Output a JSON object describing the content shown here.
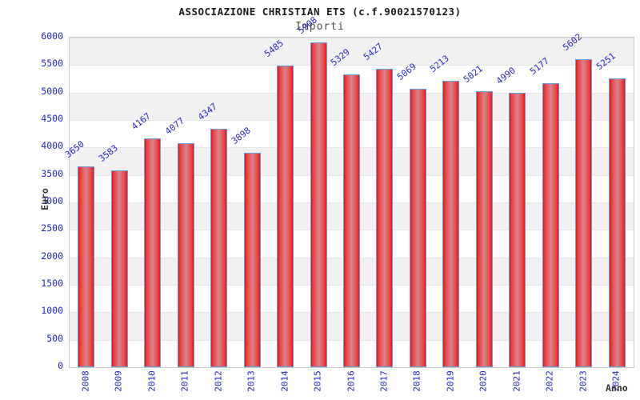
{
  "page": {
    "title": "ASSOCIAZIONE CHRISTIAN ETS (c.f.90021570123)",
    "subtitle": "Importi"
  },
  "chart_data": {
    "type": "bar",
    "title": "ASSOCIAZIONE CHRISTIAN ETS (c.f.90021570123)",
    "subtitle": "Importi",
    "xlabel": "Anno",
    "ylabel": "Euro",
    "categories": [
      "2008",
      "2009",
      "2010",
      "2011",
      "2012",
      "2013",
      "2014",
      "2015",
      "2016",
      "2017",
      "2018",
      "2019",
      "2020",
      "2021",
      "2022",
      "2023",
      "2024"
    ],
    "values": [
      3650,
      3583,
      4167,
      4077,
      4347,
      3898,
      5485,
      5908,
      5329,
      5427,
      5069,
      5213,
      5021,
      4990,
      5177,
      5602,
      5251
    ],
    "ylim": [
      0,
      6000
    ],
    "ytick_step": 500,
    "grid": "horizontal-alternating-bands",
    "legend": "none",
    "colors": {
      "bar_edge": "#e21212",
      "bar_center": "#d5878b",
      "bar_border": "#64a0dc",
      "tick_label": "#2222cc",
      "value_label": "#2a2ac9",
      "band_gray": "#f1f1f1",
      "band_white": "#ffffff",
      "plot_border": "#c9c9c9",
      "title": "#1a1a1a",
      "subtitle": "#4f4f4f",
      "axis_title": "#333333"
    }
  }
}
